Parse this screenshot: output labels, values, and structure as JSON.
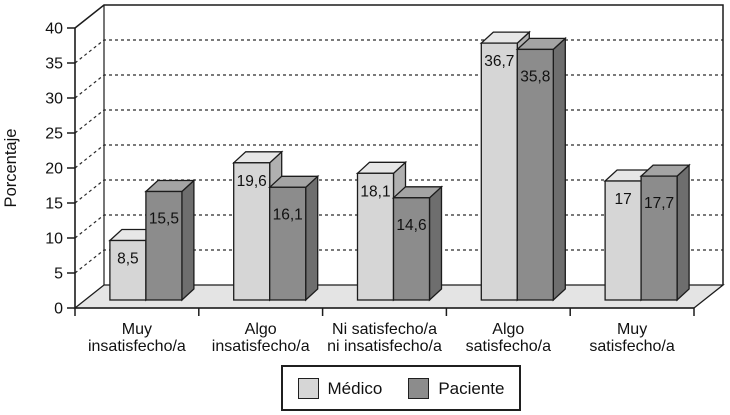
{
  "chart_data": {
    "type": "bar",
    "style": "3d-clustered",
    "title": "",
    "xlabel": "",
    "ylabel": "Porcentaje",
    "ylim": [
      0,
      40
    ],
    "yticks": [
      0,
      5,
      10,
      15,
      20,
      25,
      30,
      35,
      40
    ],
    "grid": "dashed-horizontal-on-back-wall",
    "legend_position": "bottom-center",
    "categories": [
      {
        "line1": "Muy",
        "line2": "insatisfecho/a"
      },
      {
        "line1": "Algo",
        "line2": "insatisfecho/a"
      },
      {
        "line1": "Ni satisfecho/a",
        "line2": "ni insatisfecho/a"
      },
      {
        "line1": "Algo",
        "line2": "satisfecho/a"
      },
      {
        "line1": "Muy",
        "line2": "satisfecho/a"
      }
    ],
    "series": [
      {
        "name": "Médico",
        "values": [
          8.5,
          19.6,
          18.1,
          36.7,
          17
        ],
        "value_labels": [
          "8,5",
          "19,6",
          "18,1",
          "36,7",
          "17"
        ]
      },
      {
        "name": "Paciente",
        "values": [
          15.5,
          16.1,
          14.6,
          35.8,
          17.7
        ],
        "value_labels": [
          "15,5",
          "16,1",
          "14,6",
          "35,8",
          "17,7"
        ]
      }
    ]
  },
  "colors": {
    "background": "#ffffff",
    "outline": "#1c1c1c",
    "grid": "#2a2a2a",
    "text": "#111111",
    "floor": "#e4e4e4",
    "series": [
      {
        "front": "#d6d6d6",
        "top": "#e7e7e7",
        "side": "#b0b0b0"
      },
      {
        "front": "#8c8c8c",
        "top": "#a4a4a4",
        "side": "#6e6e6e"
      }
    ]
  }
}
